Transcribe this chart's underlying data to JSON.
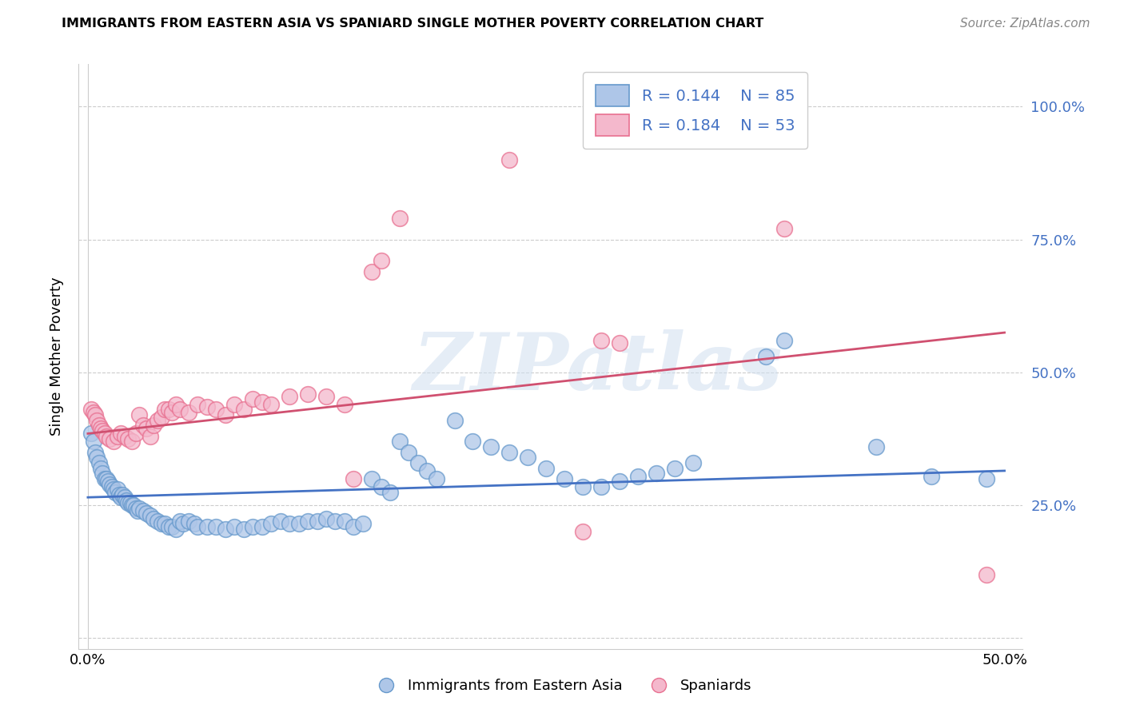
{
  "title": "IMMIGRANTS FROM EASTERN ASIA VS SPANIARD SINGLE MOTHER POVERTY CORRELATION CHART",
  "source": "Source: ZipAtlas.com",
  "ylabel": "Single Mother Poverty",
  "y_ticks": [
    0.0,
    0.25,
    0.5,
    0.75,
    1.0
  ],
  "y_tick_labels": [
    "",
    "25.0%",
    "50.0%",
    "75.0%",
    "100.0%"
  ],
  "x_ticks": [
    0.0,
    0.1,
    0.2,
    0.3,
    0.4,
    0.5
  ],
  "x_tick_labels": [
    "0.0%",
    "",
    "",
    "",
    "",
    "50.0%"
  ],
  "xlim": [
    -0.005,
    0.51
  ],
  "ylim": [
    -0.02,
    1.08
  ],
  "watermark": "ZIPatlas",
  "blue_color": "#aec6e8",
  "pink_color": "#f4b8cc",
  "blue_edge_color": "#6699cc",
  "pink_edge_color": "#e87090",
  "blue_line_color": "#4472c4",
  "pink_line_color": "#d05070",
  "blue_scatter": [
    [
      0.002,
      0.385
    ],
    [
      0.003,
      0.37
    ],
    [
      0.004,
      0.35
    ],
    [
      0.005,
      0.34
    ],
    [
      0.006,
      0.33
    ],
    [
      0.007,
      0.32
    ],
    [
      0.008,
      0.31
    ],
    [
      0.009,
      0.3
    ],
    [
      0.01,
      0.3
    ],
    [
      0.011,
      0.295
    ],
    [
      0.012,
      0.29
    ],
    [
      0.013,
      0.285
    ],
    [
      0.014,
      0.28
    ],
    [
      0.015,
      0.275
    ],
    [
      0.016,
      0.28
    ],
    [
      0.017,
      0.27
    ],
    [
      0.018,
      0.265
    ],
    [
      0.019,
      0.27
    ],
    [
      0.02,
      0.265
    ],
    [
      0.021,
      0.26
    ],
    [
      0.022,
      0.255
    ],
    [
      0.023,
      0.255
    ],
    [
      0.024,
      0.25
    ],
    [
      0.025,
      0.25
    ],
    [
      0.026,
      0.245
    ],
    [
      0.027,
      0.24
    ],
    [
      0.028,
      0.245
    ],
    [
      0.03,
      0.24
    ],
    [
      0.032,
      0.235
    ],
    [
      0.034,
      0.23
    ],
    [
      0.036,
      0.225
    ],
    [
      0.038,
      0.22
    ],
    [
      0.04,
      0.215
    ],
    [
      0.042,
      0.215
    ],
    [
      0.044,
      0.21
    ],
    [
      0.046,
      0.21
    ],
    [
      0.048,
      0.205
    ],
    [
      0.05,
      0.22
    ],
    [
      0.052,
      0.215
    ],
    [
      0.055,
      0.22
    ],
    [
      0.058,
      0.215
    ],
    [
      0.06,
      0.21
    ],
    [
      0.065,
      0.21
    ],
    [
      0.07,
      0.21
    ],
    [
      0.075,
      0.205
    ],
    [
      0.08,
      0.21
    ],
    [
      0.085,
      0.205
    ],
    [
      0.09,
      0.21
    ],
    [
      0.095,
      0.21
    ],
    [
      0.1,
      0.215
    ],
    [
      0.105,
      0.22
    ],
    [
      0.11,
      0.215
    ],
    [
      0.115,
      0.215
    ],
    [
      0.12,
      0.22
    ],
    [
      0.125,
      0.22
    ],
    [
      0.13,
      0.225
    ],
    [
      0.135,
      0.22
    ],
    [
      0.14,
      0.22
    ],
    [
      0.145,
      0.21
    ],
    [
      0.15,
      0.215
    ],
    [
      0.155,
      0.3
    ],
    [
      0.16,
      0.285
    ],
    [
      0.165,
      0.275
    ],
    [
      0.17,
      0.37
    ],
    [
      0.175,
      0.35
    ],
    [
      0.18,
      0.33
    ],
    [
      0.185,
      0.315
    ],
    [
      0.19,
      0.3
    ],
    [
      0.2,
      0.41
    ],
    [
      0.21,
      0.37
    ],
    [
      0.22,
      0.36
    ],
    [
      0.23,
      0.35
    ],
    [
      0.24,
      0.34
    ],
    [
      0.25,
      0.32
    ],
    [
      0.26,
      0.3
    ],
    [
      0.27,
      0.285
    ],
    [
      0.28,
      0.285
    ],
    [
      0.29,
      0.295
    ],
    [
      0.3,
      0.305
    ],
    [
      0.31,
      0.31
    ],
    [
      0.32,
      0.32
    ],
    [
      0.33,
      0.33
    ],
    [
      0.37,
      0.53
    ],
    [
      0.38,
      0.56
    ],
    [
      0.43,
      0.36
    ],
    [
      0.46,
      0.305
    ],
    [
      0.49,
      0.3
    ]
  ],
  "pink_scatter": [
    [
      0.002,
      0.43
    ],
    [
      0.003,
      0.425
    ],
    [
      0.004,
      0.42
    ],
    [
      0.005,
      0.41
    ],
    [
      0.006,
      0.4
    ],
    [
      0.007,
      0.395
    ],
    [
      0.008,
      0.39
    ],
    [
      0.009,
      0.385
    ],
    [
      0.01,
      0.38
    ],
    [
      0.012,
      0.375
    ],
    [
      0.014,
      0.37
    ],
    [
      0.016,
      0.38
    ],
    [
      0.018,
      0.385
    ],
    [
      0.02,
      0.38
    ],
    [
      0.022,
      0.375
    ],
    [
      0.024,
      0.37
    ],
    [
      0.026,
      0.385
    ],
    [
      0.028,
      0.42
    ],
    [
      0.03,
      0.4
    ],
    [
      0.032,
      0.395
    ],
    [
      0.034,
      0.38
    ],
    [
      0.036,
      0.4
    ],
    [
      0.038,
      0.41
    ],
    [
      0.04,
      0.415
    ],
    [
      0.042,
      0.43
    ],
    [
      0.044,
      0.43
    ],
    [
      0.046,
      0.425
    ],
    [
      0.048,
      0.44
    ],
    [
      0.05,
      0.43
    ],
    [
      0.055,
      0.425
    ],
    [
      0.06,
      0.44
    ],
    [
      0.065,
      0.435
    ],
    [
      0.07,
      0.43
    ],
    [
      0.075,
      0.42
    ],
    [
      0.08,
      0.44
    ],
    [
      0.085,
      0.43
    ],
    [
      0.09,
      0.45
    ],
    [
      0.095,
      0.445
    ],
    [
      0.1,
      0.44
    ],
    [
      0.11,
      0.455
    ],
    [
      0.12,
      0.46
    ],
    [
      0.13,
      0.455
    ],
    [
      0.14,
      0.44
    ],
    [
      0.145,
      0.3
    ],
    [
      0.155,
      0.69
    ],
    [
      0.16,
      0.71
    ],
    [
      0.17,
      0.79
    ],
    [
      0.23,
      0.9
    ],
    [
      0.27,
      0.2
    ],
    [
      0.28,
      0.56
    ],
    [
      0.29,
      0.555
    ],
    [
      0.38,
      0.77
    ],
    [
      0.49,
      0.12
    ]
  ],
  "blue_line": {
    "x": [
      0.0,
      0.5
    ],
    "y": [
      0.265,
      0.315
    ]
  },
  "pink_line": {
    "x": [
      0.0,
      0.5
    ],
    "y": [
      0.385,
      0.575
    ]
  }
}
